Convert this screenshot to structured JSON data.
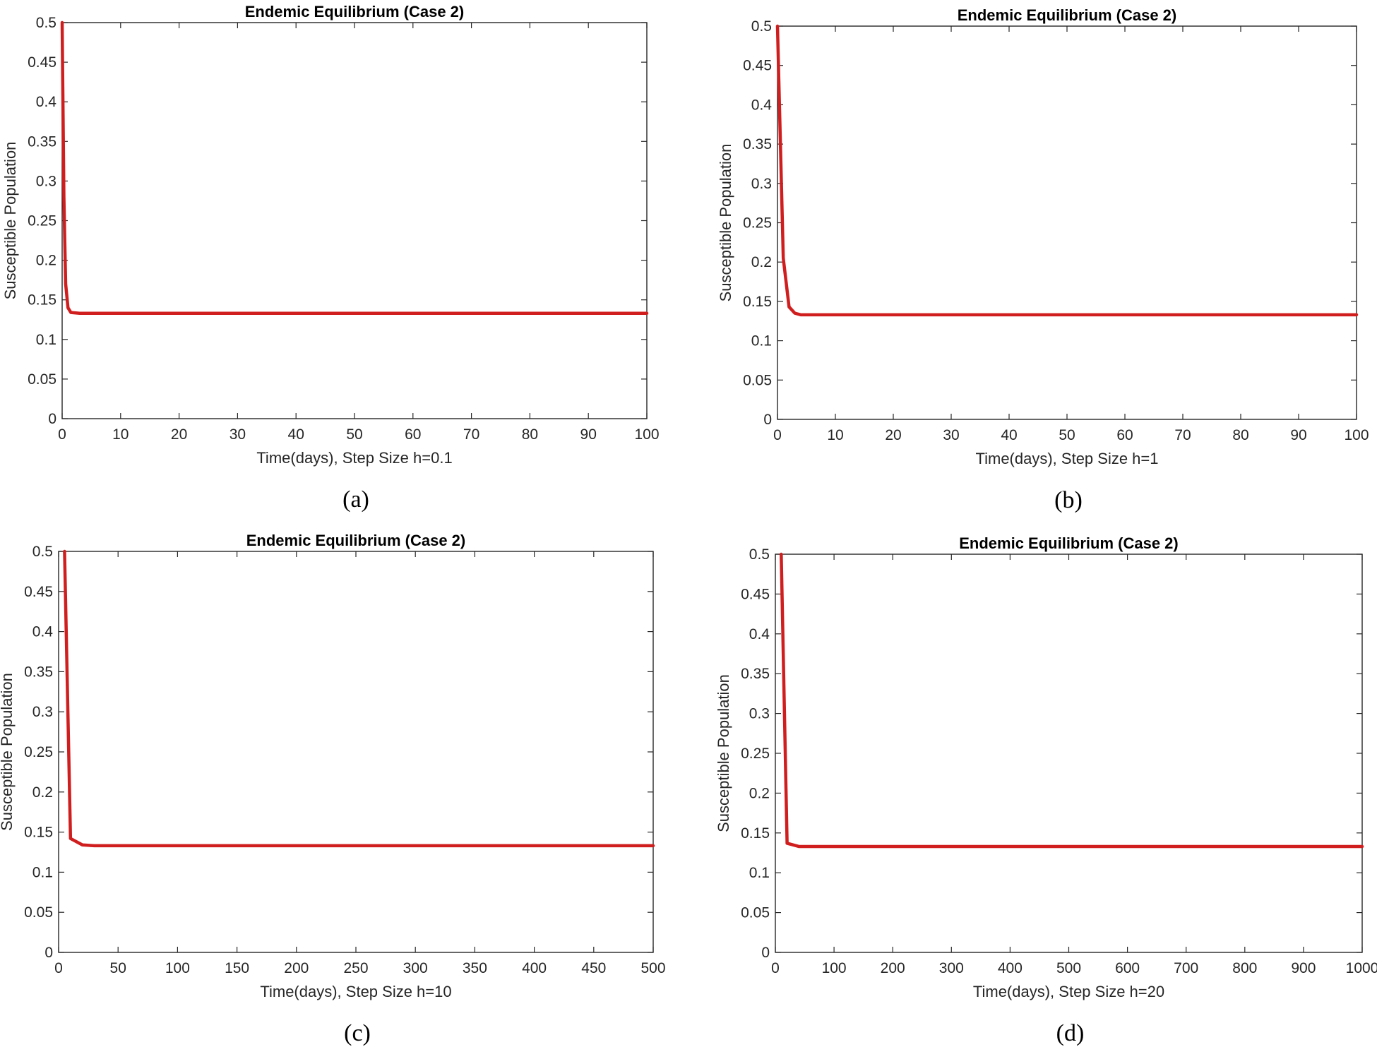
{
  "figure": {
    "line_color": "#d01e1e"
  },
  "chart_data": [
    {
      "type": "line",
      "panel_label": "(a)",
      "title": "Endemic Equilibrium (Case 2)",
      "xlabel": "Time(days), Step Size h=0.1",
      "ylabel": "Susceptible Population",
      "xlim": [
        0,
        100
      ],
      "ylim": [
        0,
        0.5
      ],
      "x_ticks": [
        "0",
        "10",
        "20",
        "30",
        "40",
        "50",
        "60",
        "70",
        "80",
        "90",
        "100"
      ],
      "y_ticks": [
        "0",
        "0.05",
        "0.1",
        "0.15",
        "0.2",
        "0.25",
        "0.3",
        "0.35",
        "0.4",
        "0.45",
        "0.5"
      ],
      "grid": false,
      "series": [
        {
          "name": "Susceptible",
          "x": [
            0,
            0.3,
            0.6,
            1,
            1.5,
            3,
            10,
            50,
            100
          ],
          "y": [
            0.5,
            0.28,
            0.17,
            0.14,
            0.134,
            0.133,
            0.133,
            0.133,
            0.133
          ]
        }
      ]
    },
    {
      "type": "line",
      "panel_label": "(b)",
      "title": "Endemic Equilibrium (Case 2)",
      "xlabel": "Time(days), Step Size h=1",
      "ylabel": "Susceptible Population",
      "xlim": [
        0,
        100
      ],
      "ylim": [
        0,
        0.5
      ],
      "x_ticks": [
        "0",
        "10",
        "20",
        "30",
        "40",
        "50",
        "60",
        "70",
        "80",
        "90",
        "100"
      ],
      "y_ticks": [
        "0",
        "0.05",
        "0.1",
        "0.15",
        "0.2",
        "0.25",
        "0.3",
        "0.35",
        "0.4",
        "0.45",
        "0.5"
      ],
      "grid": false,
      "series": [
        {
          "name": "Susceptible",
          "x": [
            0,
            1,
            2,
            3,
            4,
            10,
            50,
            100
          ],
          "y": [
            0.5,
            0.205,
            0.143,
            0.135,
            0.133,
            0.133,
            0.133,
            0.133
          ]
        }
      ]
    },
    {
      "type": "line",
      "panel_label": "(c)",
      "title": "Endemic Equilibrium (Case 2)",
      "xlabel": "Time(days), Step Size h=10",
      "ylabel": "Susceptible Population",
      "xlim": [
        0,
        500
      ],
      "ylim": [
        0,
        0.5
      ],
      "x_ticks": [
        "0",
        "50",
        "100",
        "150",
        "200",
        "250",
        "300",
        "350",
        "400",
        "450",
        "500"
      ],
      "y_ticks": [
        "0",
        "0.05",
        "0.1",
        "0.15",
        "0.2",
        "0.25",
        "0.3",
        "0.35",
        "0.4",
        "0.45",
        "0.5"
      ],
      "grid": false,
      "series": [
        {
          "name": "Susceptible",
          "x": [
            5,
            10,
            20,
            30,
            100,
            500
          ],
          "y": [
            0.5,
            0.142,
            0.134,
            0.133,
            0.133,
            0.133
          ]
        }
      ]
    },
    {
      "type": "line",
      "panel_label": "(d)",
      "title": "Endemic Equilibrium (Case 2)",
      "xlabel": "Time(days), Step Size h=20",
      "ylabel": "Susceptible Population",
      "xlim": [
        0,
        1000
      ],
      "ylim": [
        0,
        0.5
      ],
      "x_ticks": [
        "0",
        "100",
        "200",
        "300",
        "400",
        "500",
        "600",
        "700",
        "800",
        "900",
        "1000"
      ],
      "y_ticks": [
        "0",
        "0.05",
        "0.1",
        "0.15",
        "0.2",
        "0.25",
        "0.3",
        "0.35",
        "0.4",
        "0.45",
        "0.5"
      ],
      "grid": false,
      "series": [
        {
          "name": "Susceptible",
          "x": [
            10,
            20,
            40,
            60,
            200,
            1000
          ],
          "y": [
            0.5,
            0.137,
            0.133,
            0.133,
            0.133,
            0.133
          ]
        }
      ]
    }
  ]
}
